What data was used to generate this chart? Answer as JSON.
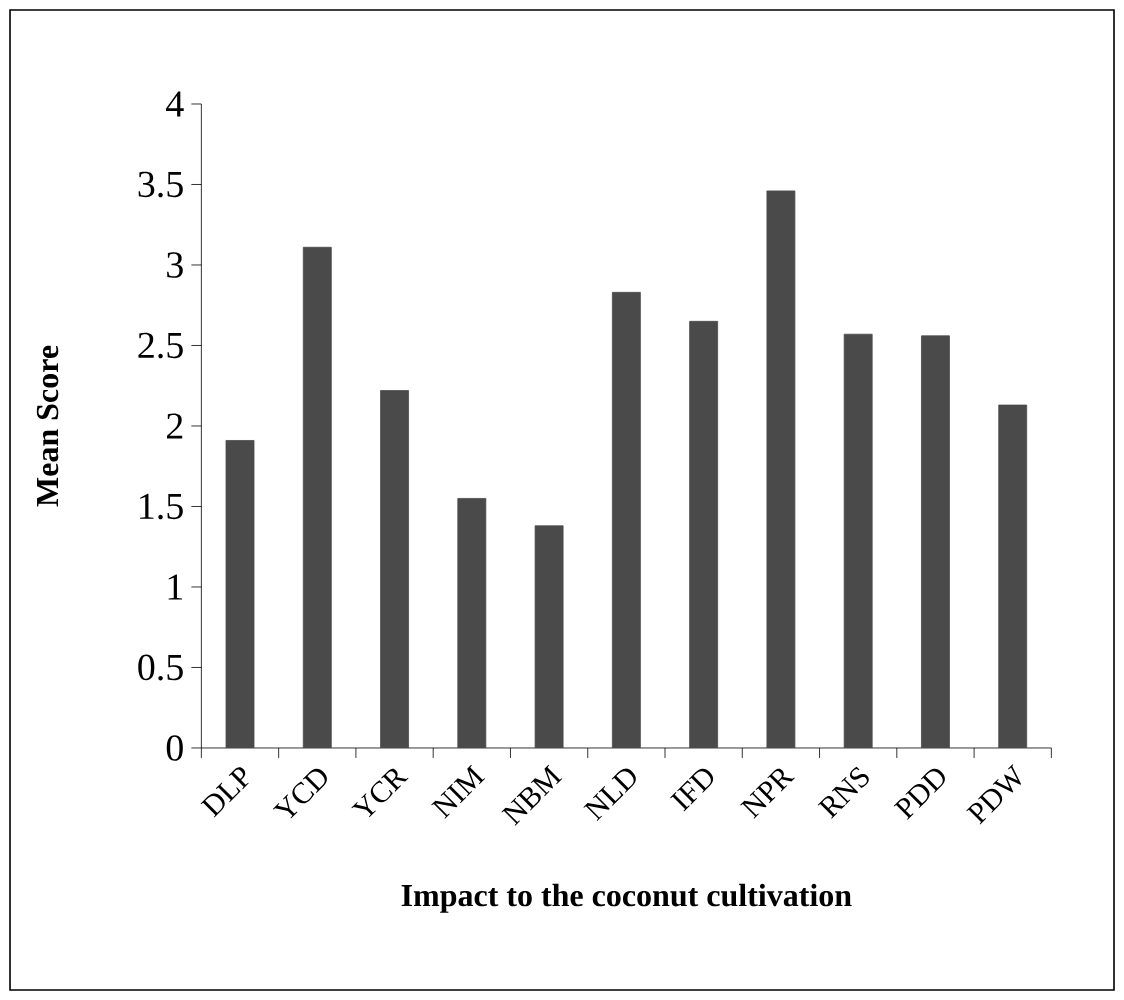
{
  "chart_data": {
    "type": "bar",
    "xlabel": "Impact to the coconut cultivation",
    "ylabel": "Mean Score",
    "categories": [
      "DLP",
      "YCD",
      "YCR",
      "NIM",
      "NBM",
      "NLD",
      "IFD",
      "NPR",
      "RNS",
      "PDD",
      "PDW"
    ],
    "values": [
      1.91,
      3.11,
      2.22,
      1.55,
      1.38,
      2.83,
      2.65,
      3.46,
      2.57,
      2.56,
      2.13
    ],
    "color": "#4a4a4a",
    "ylim": [
      0,
      4
    ],
    "yticks": [
      0,
      0.5,
      1,
      1.5,
      2,
      2.5,
      3,
      3.5,
      4
    ],
    "grid": false
  }
}
